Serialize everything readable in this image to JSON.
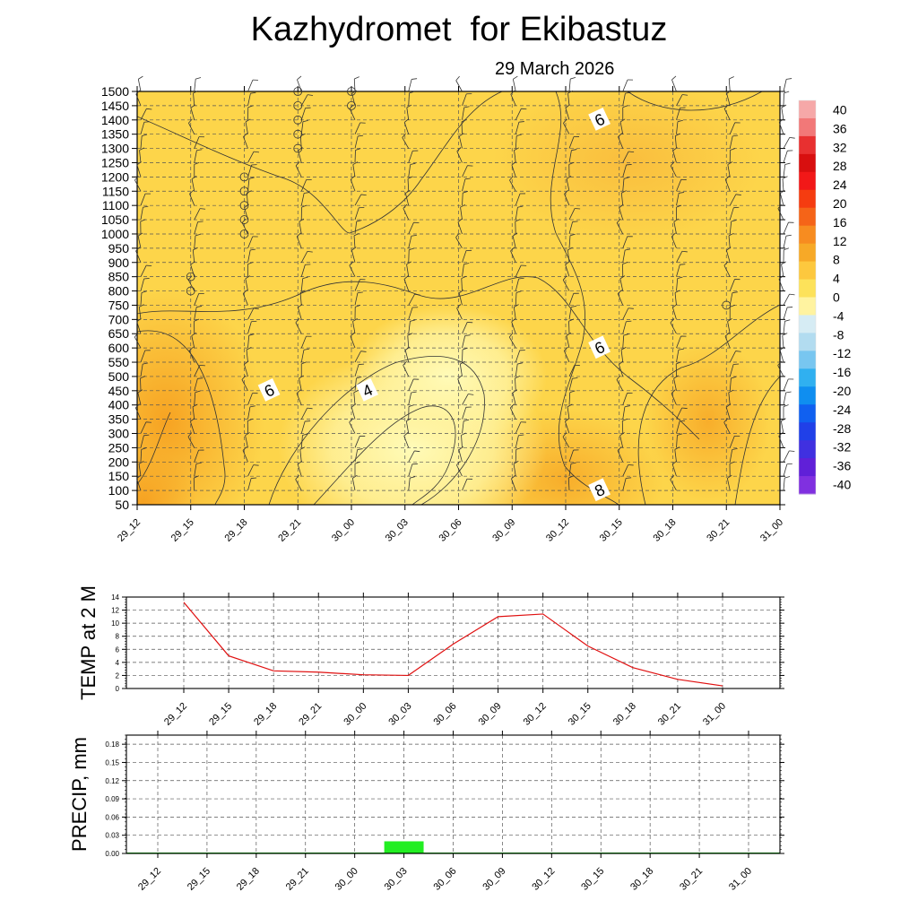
{
  "title": "Kazhydromet  for Ekibastuz",
  "subtitle": "29 March 2026",
  "time_labels": [
    "29_12",
    "29_15",
    "29_18",
    "29_21",
    "30_00",
    "30_03",
    "30_06",
    "30_09",
    "30_12",
    "30_15",
    "30_18",
    "30_21",
    "31_00"
  ],
  "colors": {
    "warm": "#fdd54a",
    "orange": "#f7a927",
    "pale": "#fff7a8",
    "temp_line": "#e01010",
    "precip_bar": "#22ee22",
    "grid": "#555555"
  },
  "chart_data": [
    {
      "type": "heatmap",
      "title": "Kazhydromet  for Ekibastuz",
      "subtitle": "29 March 2026",
      "y_ticks": [
        50,
        100,
        150,
        200,
        250,
        300,
        350,
        400,
        450,
        500,
        550,
        600,
        650,
        700,
        750,
        800,
        850,
        900,
        950,
        1000,
        1050,
        1100,
        1150,
        1200,
        1250,
        1300,
        1350,
        1400,
        1450,
        1500
      ],
      "ylim": [
        50,
        1500
      ],
      "x_ticks": [
        "29_12",
        "29_15",
        "29_18",
        "29_21",
        "30_00",
        "30_03",
        "30_06",
        "30_09",
        "30_12",
        "30_15",
        "30_18",
        "30_21",
        "31_00"
      ],
      "contour_labels": [
        {
          "text": "6",
          "x": "30_12",
          "y": 1400
        },
        {
          "text": "6",
          "x": "30_12",
          "y": 600
        },
        {
          "text": "6",
          "x": "29_18",
          "y": 450
        },
        {
          "text": "4",
          "x": "30_00",
          "y": 450
        },
        {
          "text": "8",
          "x": "30_12",
          "y": 100
        }
      ],
      "colorbar": {
        "labels": [
          "40",
          "36",
          "32",
          "28",
          "24",
          "20",
          "16",
          "12",
          "8",
          "4",
          "0",
          "-4",
          "-8",
          "-12",
          "-16",
          "-20",
          "-24",
          "-28",
          "-32",
          "-36",
          "-40"
        ],
        "colors": [
          "#f6a8a8",
          "#f27878",
          "#e83030",
          "#d80f0f",
          "#f21818",
          "#f53c10",
          "#f56418",
          "#f78c20",
          "#f7a927",
          "#fdc83e",
          "#fde25a",
          "#fff3a0",
          "#d6ecf4",
          "#b2dcf0",
          "#78c6f0",
          "#30b0f0",
          "#0f8ef0",
          "#1060f0",
          "#2040e8",
          "#4030e0",
          "#6020d8",
          "#8030e0"
        ]
      },
      "grid": true
    },
    {
      "type": "line",
      "ylabel": "TEMP at 2 M",
      "x": [
        "29_12",
        "29_15",
        "29_18",
        "29_21",
        "30_00",
        "30_03",
        "30_06",
        "30_09",
        "30_12",
        "30_15",
        "30_18",
        "30_21",
        "31_00"
      ],
      "values": [
        13.2,
        5.0,
        2.7,
        2.5,
        2.1,
        2.0,
        6.8,
        11.0,
        11.4,
        6.5,
        3.2,
        1.4,
        0.4
      ],
      "ylim": [
        0,
        14
      ],
      "y_ticks": [
        "0",
        "2",
        "4",
        "6",
        "8",
        "10",
        "12",
        "14"
      ],
      "grid": true
    },
    {
      "type": "bar",
      "ylabel": "PRECIP, mm",
      "categories": [
        "29_12",
        "29_15",
        "29_18",
        "29_21",
        "30_00",
        "30_03",
        "30_06",
        "30_09",
        "30_12",
        "30_15",
        "30_18",
        "30_21",
        "31_00"
      ],
      "values": [
        0,
        0,
        0,
        0,
        0,
        0.02,
        0,
        0,
        0,
        0,
        0,
        0,
        0
      ],
      "ylim": [
        0,
        0.195
      ],
      "y_ticks": [
        "0.00",
        "0.03",
        "0.06",
        "0.09",
        "0.12",
        "0.15",
        "0.18"
      ],
      "grid": true
    }
  ]
}
